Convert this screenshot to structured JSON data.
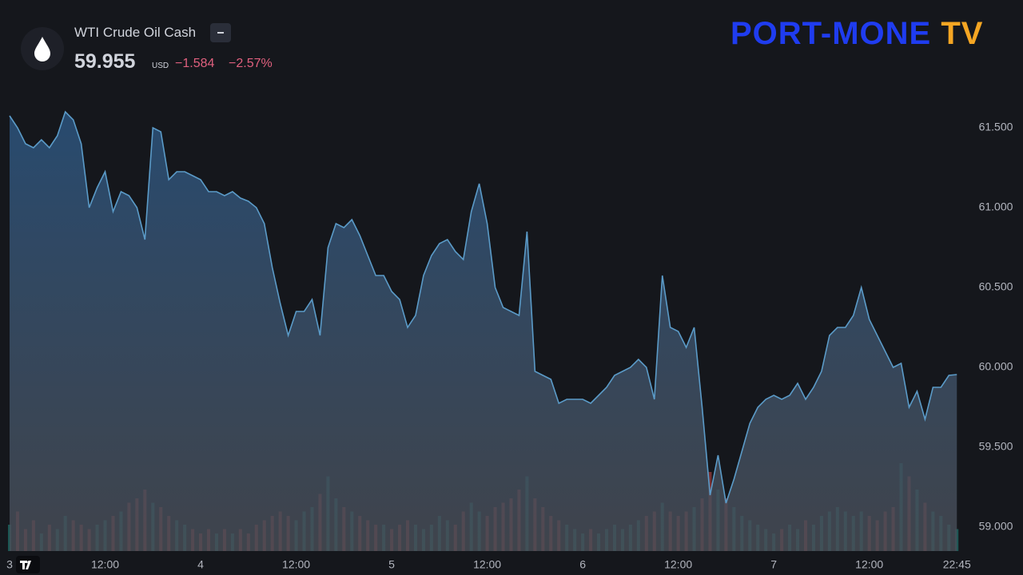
{
  "header": {
    "symbol": "WTI Crude Oil Cash",
    "price": "59.955",
    "currency": "USD",
    "change": "−1.584",
    "change_pct": "−2.57%"
  },
  "logo": {
    "main": "PORT-MONE",
    "suffix": "TV"
  },
  "chart_data": {
    "type": "area",
    "categories": [
      "3",
      null,
      null,
      null,
      null,
      null,
      null,
      null,
      null,
      null,
      null,
      null,
      "12:00",
      null,
      null,
      null,
      null,
      null,
      null,
      null,
      null,
      null,
      null,
      null,
      "4",
      null,
      null,
      null,
      null,
      null,
      null,
      null,
      null,
      null,
      null,
      null,
      "12:00",
      null,
      null,
      null,
      null,
      null,
      null,
      null,
      null,
      null,
      null,
      null,
      "5",
      null,
      null,
      null,
      null,
      null,
      null,
      null,
      null,
      null,
      null,
      null,
      "12:00",
      null,
      null,
      null,
      null,
      null,
      null,
      null,
      null,
      null,
      null,
      null,
      "6",
      null,
      null,
      null,
      null,
      null,
      null,
      null,
      null,
      null,
      null,
      null,
      "12:00",
      null,
      null,
      null,
      null,
      null,
      null,
      null,
      null,
      null,
      null,
      null,
      "7",
      null,
      null,
      null,
      null,
      null,
      null,
      null,
      null,
      null,
      null,
      null,
      "12:00",
      null,
      null,
      null,
      null,
      null,
      null,
      null,
      null,
      null,
      null,
      "22:45"
    ],
    "series": [
      {
        "color": "#5b9bc8",
        "values": [
          61.575,
          61.5,
          61.4,
          61.375,
          61.425,
          61.375,
          61.45,
          61.6,
          61.55,
          61.4,
          61.0,
          61.125,
          61.225,
          60.975,
          61.1,
          61.075,
          61.0,
          60.8,
          61.5,
          61.475,
          61.175,
          61.225,
          61.225,
          61.2,
          61.175,
          61.1,
          61.1,
          61.075,
          61.1,
          61.06,
          61.04,
          61.0,
          60.9,
          60.625,
          60.4,
          60.2,
          60.35,
          60.35,
          60.425,
          60.2,
          60.75,
          60.9,
          60.875,
          60.925,
          60.825,
          60.7,
          60.575,
          60.575,
          60.475,
          60.425,
          60.25,
          60.325,
          60.575,
          60.7,
          60.775,
          60.8,
          60.725,
          60.675,
          60.975,
          61.15,
          60.9,
          60.5,
          60.375,
          60.35,
          60.325,
          60.85,
          59.975,
          59.95,
          59.925,
          59.775,
          59.8,
          59.8,
          59.8,
          59.775,
          59.825,
          59.875,
          59.95,
          59.975,
          60.0,
          60.05,
          60.0,
          59.8,
          60.575,
          60.25,
          60.225,
          60.125,
          60.25,
          59.75,
          59.2,
          59.45,
          59.15,
          59.3,
          59.475,
          59.65,
          59.75,
          59.8,
          59.825,
          59.8,
          59.825,
          59.9,
          59.8,
          59.875,
          59.975,
          60.2,
          60.25,
          60.25,
          60.325,
          60.5,
          60.3,
          60.2,
          60.1,
          60.0,
          60.025,
          59.75,
          59.85,
          59.675,
          59.875,
          59.875,
          59.95,
          59.955
        ]
      }
    ],
    "volume": {
      "axis": "y2",
      "up_color": "#26a69a",
      "down_color": "#ef5350",
      "values": [
        30,
        45,
        25,
        35,
        20,
        30,
        25,
        40,
        35,
        30,
        25,
        30,
        35,
        40,
        45,
        55,
        60,
        70,
        55,
        50,
        40,
        35,
        30,
        25,
        20,
        25,
        20,
        25,
        20,
        25,
        20,
        30,
        35,
        40,
        45,
        40,
        35,
        45,
        50,
        65,
        85,
        60,
        50,
        45,
        40,
        35,
        30,
        30,
        25,
        30,
        35,
        30,
        25,
        30,
        40,
        35,
        30,
        45,
        55,
        45,
        40,
        50,
        55,
        60,
        70,
        85,
        60,
        50,
        40,
        35,
        30,
        25,
        20,
        25,
        20,
        25,
        30,
        25,
        30,
        35,
        40,
        45,
        55,
        45,
        40,
        45,
        50,
        60,
        90,
        70,
        60,
        50,
        40,
        35,
        30,
        25,
        20,
        25,
        30,
        25,
        35,
        30,
        40,
        45,
        50,
        45,
        40,
        45,
        40,
        35,
        45,
        50,
        100,
        85,
        70,
        55,
        45,
        40,
        30,
        25
      ]
    },
    "ylim": [
      58.85,
      61.85
    ],
    "yticks": [
      {
        "value": 59,
        "label": "59.000"
      },
      {
        "value": 59.5,
        "label": "59.500"
      },
      {
        "value": 60,
        "label": "60.000"
      },
      {
        "value": 60.5,
        "label": "60.500"
      },
      {
        "value": 61,
        "label": "61.000"
      },
      {
        "value": 61.5,
        "label": "61.500"
      }
    ],
    "y2lim": [
      0,
      100
    ],
    "grid": false
  }
}
